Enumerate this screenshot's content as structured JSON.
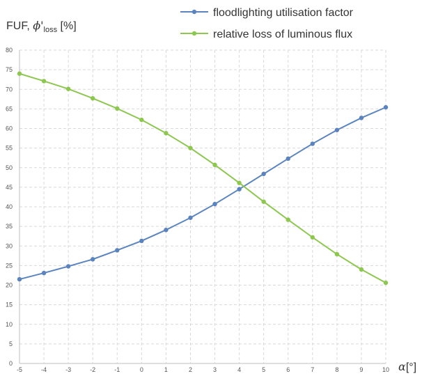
{
  "chart_data": {
    "type": "line",
    "ylabel": {
      "prefix": "FUF, ",
      "symbol": "ϕ'",
      "subscript": "loss",
      "unit": " [%]"
    },
    "xlabel": {
      "symbol": "α",
      "unit": "[°]"
    },
    "x": [
      -5,
      -4,
      -3,
      -2,
      -1,
      0,
      1,
      2,
      3,
      4,
      5,
      6,
      7,
      8,
      9,
      10
    ],
    "xlim": [
      -5,
      10
    ],
    "ylim": [
      0,
      80
    ],
    "x_ticks": [
      "-5",
      "-4",
      "-3",
      "-2",
      "-1",
      "0",
      "1",
      "2",
      "3",
      "4",
      "5",
      "6",
      "7",
      "8",
      "9",
      "10"
    ],
    "y_ticks": [
      "0",
      "5",
      "10",
      "15",
      "20",
      "25",
      "30",
      "35",
      "40",
      "45",
      "50",
      "55",
      "60",
      "65",
      "70",
      "75",
      "80"
    ],
    "grid": true,
    "grid_style": "dashed",
    "legend_position": "top-right",
    "series": [
      {
        "name": "floodlighting utilisation factor",
        "color": "#5b84bf",
        "values": [
          21.5,
          23.1,
          24.8,
          26.6,
          28.9,
          31.3,
          34.1,
          37.2,
          40.7,
          44.5,
          48.4,
          52.3,
          56.1,
          59.6,
          62.7,
          65.4
        ]
      },
      {
        "name": "relative loss of luminous flux",
        "color": "#8dc74f",
        "values": [
          74.0,
          72.1,
          70.1,
          67.7,
          65.1,
          62.2,
          58.8,
          55.0,
          50.7,
          46.1,
          41.3,
          36.7,
          32.2,
          27.9,
          24.0,
          20.6
        ]
      }
    ]
  }
}
